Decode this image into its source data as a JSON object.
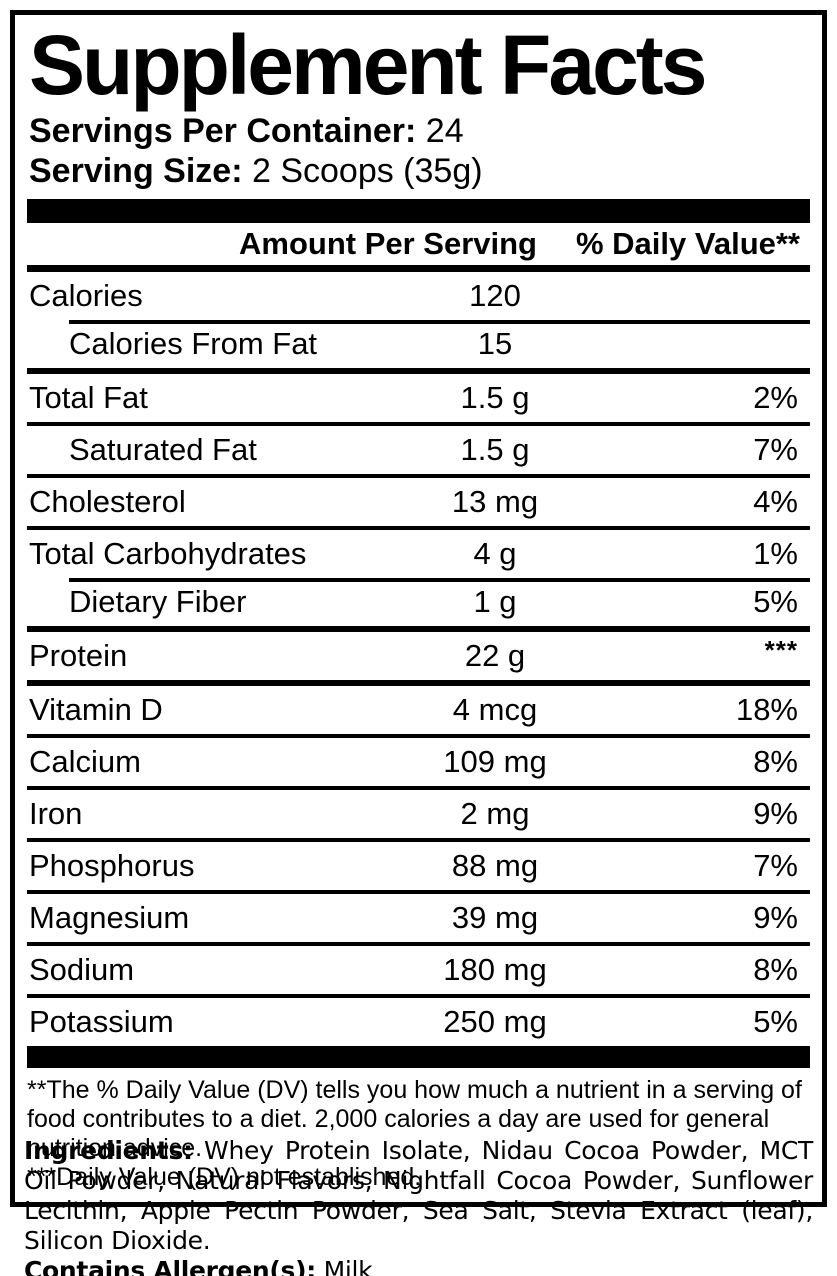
{
  "title": "Supplement Facts",
  "serving_info": {
    "servings_per_container_label": "Servings Per Container:",
    "servings_per_container_value": "24",
    "serving_size_label": "Serving Size:",
    "serving_size_value": "2 Scoops (35g)"
  },
  "table": {
    "header": {
      "amount": "Amount Per Serving",
      "daily_value": "% Daily Value**"
    },
    "rows": [
      {
        "label": "Calories",
        "amount": "120",
        "dv": "",
        "indent": false,
        "sep": "none"
      },
      {
        "label": "Calories From Fat",
        "amount": "15",
        "dv": "",
        "indent": true,
        "sep": "indent"
      },
      {
        "label": "Total Fat",
        "amount": "1.5 g",
        "dv": "2%",
        "indent": false,
        "sep": "medium"
      },
      {
        "label": "Saturated Fat",
        "amount": "1.5 g",
        "dv": "7%",
        "indent": true,
        "sep": "thin"
      },
      {
        "label": "Cholesterol",
        "amount": "13 mg",
        "dv": "4%",
        "indent": false,
        "sep": "thin"
      },
      {
        "label": "Total Carbohydrates",
        "amount": "4 g",
        "dv": "1%",
        "indent": false,
        "sep": "thin"
      },
      {
        "label": "Dietary Fiber",
        "amount": "1 g",
        "dv": "5%",
        "indent": true,
        "sep": "indent"
      },
      {
        "label": "Protein",
        "amount": "22 g",
        "dv": "***",
        "dv_style": "super",
        "indent": false,
        "sep": "medium"
      },
      {
        "label": "Vitamin D",
        "amount": "4 mcg",
        "dv": "18%",
        "indent": false,
        "sep": "medium"
      },
      {
        "label": "Calcium",
        "amount": "109 mg",
        "dv": "8%",
        "indent": false,
        "sep": "thin"
      },
      {
        "label": "Iron",
        "amount": "2 mg",
        "dv": "9%",
        "indent": false,
        "sep": "thin"
      },
      {
        "label": "Phosphorus",
        "amount": "88 mg",
        "dv": "7%",
        "indent": false,
        "sep": "thin"
      },
      {
        "label": "Magnesium",
        "amount": "39 mg",
        "dv": "9%",
        "indent": false,
        "sep": "thin"
      },
      {
        "label": "Sodium",
        "amount": "180 mg",
        "dv": "8%",
        "indent": false,
        "sep": "thin"
      },
      {
        "label": "Potassium",
        "amount": "250 mg",
        "dv": "5%",
        "indent": false,
        "sep": "thin"
      }
    ]
  },
  "footnotes": [
    "**The % Daily Value (DV) tells you how much a nutrient in a serving of food contributes to a diet. 2,000 calories a day are used for general nutrition advice.",
    "***Daily Value (DV) not established."
  ],
  "ingredients": {
    "label": "Ingredients:",
    "text": " Whey Protein Isolate, Nidau Cocoa Powder, MCT Oil Powder, Natural Flavors, Nightfall Cocoa Powder, Sunflower Lecithin, Apple Pectin Powder, Sea Salt, Stevia Extract (leaf), Silicon Dioxide.",
    "allergen_label": "Contains Allergen(s):",
    "allergen_value": " Milk"
  },
  "colors": {
    "text": "#000000",
    "background": "#ffffff",
    "rule": "#000000"
  }
}
